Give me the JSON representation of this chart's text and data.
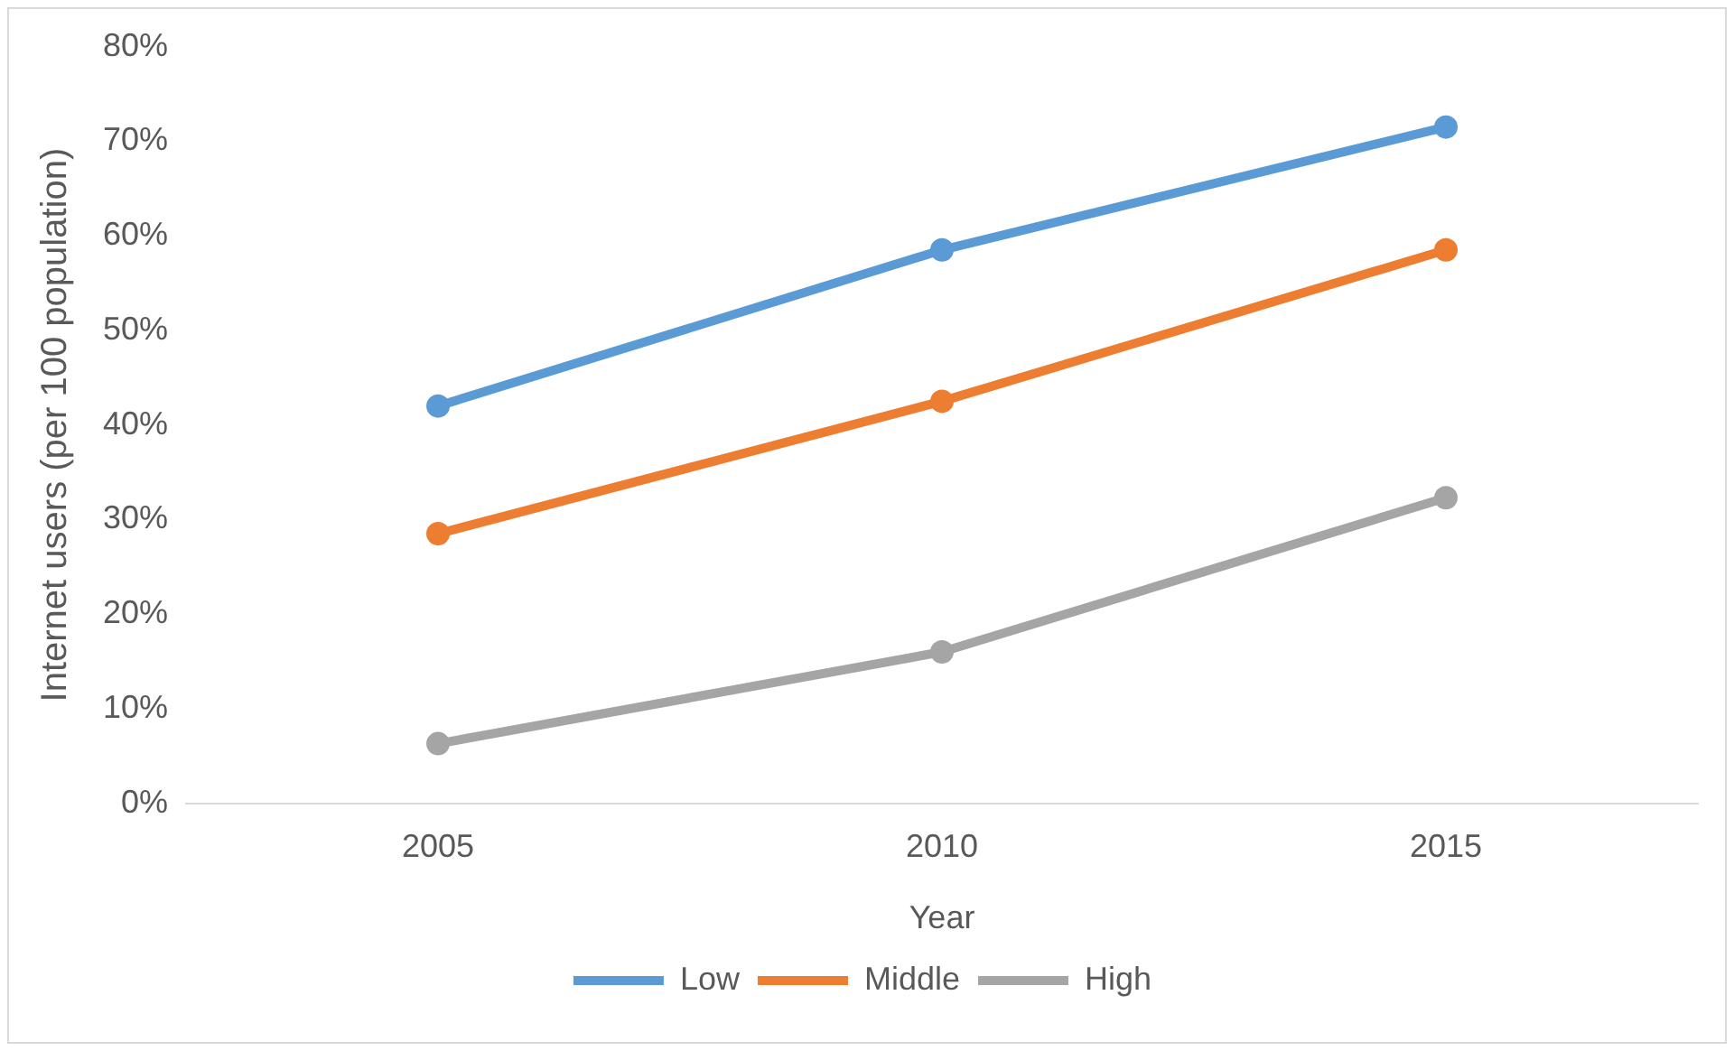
{
  "chart_data": {
    "type": "line",
    "xlabel": "Year",
    "ylabel": "Internet users (per 100 population)",
    "categories": [
      "2005",
      "2010",
      "2015"
    ],
    "series": [
      {
        "name": "Low",
        "color": "#5b9bd5",
        "values": [
          42,
          58.5,
          71.5
        ]
      },
      {
        "name": "Middle",
        "color": "#ed7d31",
        "values": [
          28.5,
          42.5,
          58.5
        ]
      },
      {
        "name": "High",
        "color": "#a5a5a5",
        "values": [
          6.3,
          16,
          32.3
        ]
      }
    ],
    "ylim": [
      0,
      80
    ],
    "yticks": [
      {
        "value": 0,
        "label": "0%"
      },
      {
        "value": 10,
        "label": "10%"
      },
      {
        "value": 20,
        "label": "20%"
      },
      {
        "value": 30,
        "label": "30%"
      },
      {
        "value": 40,
        "label": "40%"
      },
      {
        "value": 50,
        "label": "50%"
      },
      {
        "value": 60,
        "label": "60%"
      },
      {
        "value": 70,
        "label": "70%"
      },
      {
        "value": 80,
        "label": "80%"
      }
    ],
    "grid": false,
    "legend": "bottom",
    "marker": "circle",
    "line_style": "solid"
  }
}
